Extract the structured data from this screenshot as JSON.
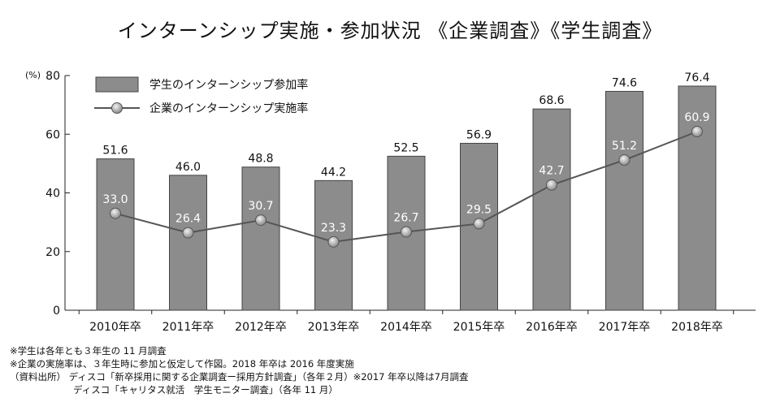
{
  "chart_data": {
    "type": "bar+line",
    "title": "インターンシップ実施・参加状況 《企業調査》《学生調査》",
    "ylabel": "(%)",
    "ylim": [
      0,
      80
    ],
    "yticks": [
      0,
      20,
      40,
      60,
      80
    ],
    "grid": false,
    "legend_position": "top-left",
    "categories": [
      "2010年卒",
      "2011年卒",
      "2012年卒",
      "2013年卒",
      "2014年卒",
      "2015年卒",
      "2016年卒",
      "2017年卒",
      "2018年卒"
    ],
    "series": [
      {
        "name": "学生のインターンシップ参加率",
        "kind": "bar",
        "color": "#8c8c8c",
        "values": [
          51.6,
          46.0,
          48.8,
          44.2,
          52.5,
          56.9,
          68.6,
          74.6,
          76.4
        ],
        "labels": [
          "51.6",
          "46.0",
          "48.8",
          "44.2",
          "52.5",
          "56.9",
          "68.6",
          "74.6",
          "76.4"
        ]
      },
      {
        "name": "企業のインターンシップ実施率",
        "kind": "line",
        "color": "#555555",
        "values": [
          33.0,
          26.4,
          30.7,
          23.3,
          26.7,
          29.5,
          42.7,
          51.2,
          60.9
        ],
        "labels": [
          "33.0",
          "26.4",
          "30.7",
          "23.3",
          "26.7",
          "29.5",
          "42.7",
          "51.2",
          "60.9"
        ]
      }
    ]
  },
  "notes": [
    "※学生は各年とも３年生の 11 月調査",
    "※企業の実施率は、３年生時に参加と仮定して作図。2018 年卒は 2016 年度実施",
    "（資料出所） ディスコ「新卒採用に関する企業調査ー採用方針調査」（各年２月）※2017 年卒以降は7月調査",
    "ディスコ「キャリタス就活　学生モニター調査」（各年 11 月）"
  ]
}
